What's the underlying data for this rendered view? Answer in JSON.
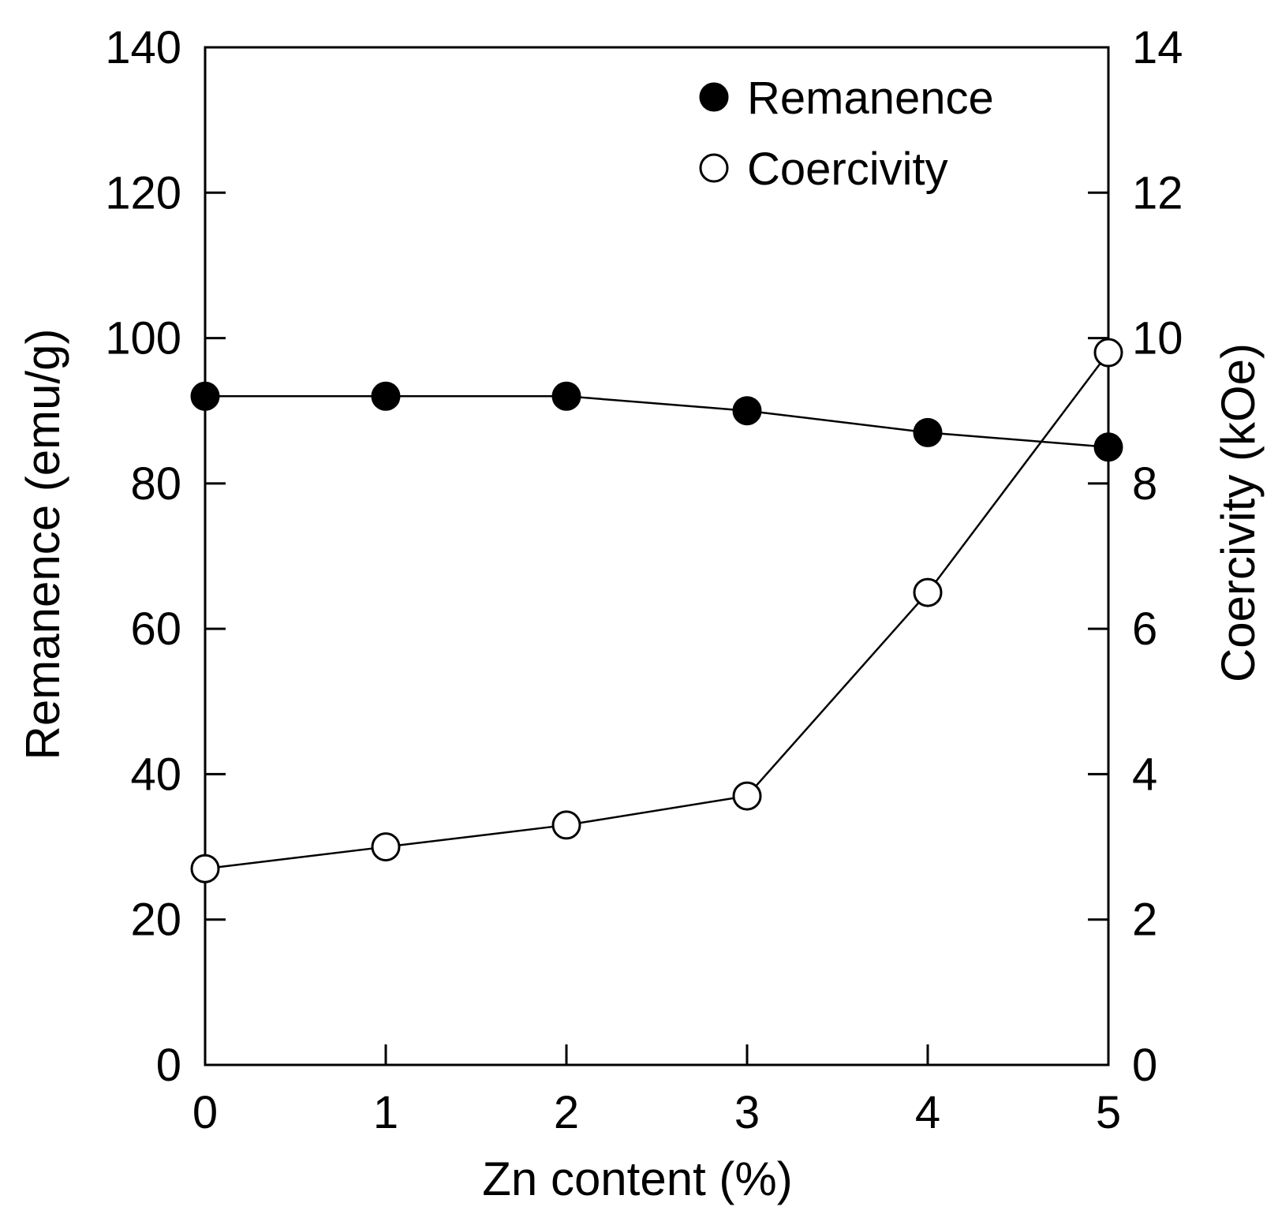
{
  "chart_data": {
    "type": "line",
    "title": "",
    "xlabel": "Zn content (%)",
    "ylabel": "Remanence (emu/g)",
    "y2label": "Coercivity (kOe)",
    "x": [
      0,
      1,
      2,
      3,
      4,
      5
    ],
    "x_ticks": [
      "0",
      "1",
      "2",
      "3",
      "4",
      "5"
    ],
    "xlim": [
      0,
      5
    ],
    "ylim": [
      0,
      140
    ],
    "y_ticks": [
      "0",
      "20",
      "40",
      "60",
      "80",
      "100",
      "120",
      "140"
    ],
    "y2lim": [
      0,
      14
    ],
    "y2_ticks": [
      "0",
      "2",
      "4",
      "6",
      "8",
      "10",
      "12",
      "14"
    ],
    "grid": false,
    "legend_position": "top-right",
    "series": [
      {
        "name": "Remanence",
        "axis": "left",
        "marker": "filled-circle",
        "color": "#000000",
        "values": [
          92,
          92,
          92,
          90,
          87,
          85
        ]
      },
      {
        "name": "Coercivity",
        "axis": "right",
        "marker": "open-circle",
        "color": "#000000",
        "values": [
          2.7,
          3.0,
          3.3,
          3.7,
          6.5,
          9.8
        ]
      }
    ]
  }
}
